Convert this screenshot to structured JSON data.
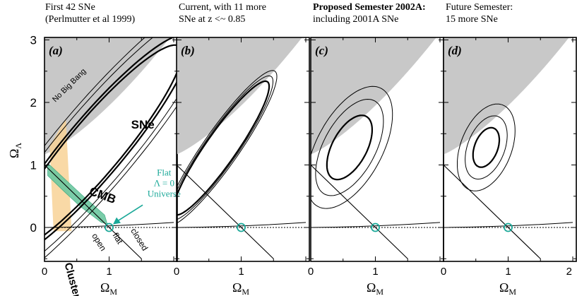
{
  "chart_data": {
    "type": "contour",
    "x_axis": {
      "label": "Ω",
      "label_sub": "M",
      "ticks": [
        "0",
        "1",
        "2"
      ],
      "range": [
        0,
        2
      ]
    },
    "y_axis": {
      "label": "Ω",
      "label_sub": "Λ",
      "ticks": [
        "0",
        "1",
        "2",
        "3"
      ],
      "range": [
        -0.5,
        3.0
      ]
    },
    "colors": {
      "no_big_bang": "#c8c8c8",
      "clusters": "#f8d296",
      "cmb": "#6cc8a0",
      "flat_marker": "#1aa898",
      "contour": "#000000"
    },
    "panels": [
      {
        "id": "a",
        "label": "(a)",
        "caption": [
          "First 42 SNe",
          "(Perlmutter et al 1999)"
        ],
        "caption_bold": false,
        "sne_ellipse": {
          "center": [
            0.78,
            1.28
          ],
          "angle_deg": 51,
          "sigma": [
            2.08,
            0.42
          ],
          "levels": [
            1.0,
            1.1,
            1.35,
            1.5
          ],
          "widths": [
            2.2,
            2.2,
            1.0,
            1.0
          ]
        },
        "annotations": {
          "no_big_bang": "No Big Bang",
          "sne": "SNe",
          "cmb": "CMB",
          "clusters": "Clusters",
          "flat_lambda": [
            "Flat",
            "Λ = 0",
            "Universe"
          ],
          "open": "open",
          "flat": "flat",
          "closed": "closed"
        }
      },
      {
        "id": "b",
        "label": "(b)",
        "caption": [
          "Current, with 11 more",
          "SNe at z <~ 0.85"
        ],
        "caption_bold": false,
        "sne_ellipse": {
          "center": [
            0.69,
            1.27
          ],
          "angle_deg": 56,
          "sigma": [
            1.28,
            0.24
          ],
          "levels": [
            1.0,
            1.08,
            1.16
          ],
          "widths": [
            2.2,
            1.0,
            1.0
          ]
        }
      },
      {
        "id": "c",
        "label": "(c)",
        "caption": [
          "Proposed Semester 2002A:",
          "including 2001A SNe"
        ],
        "caption_bold": true,
        "sne_ellipse": {
          "center": [
            0.6,
            1.28
          ],
          "angle_deg": 63,
          "sigma": [
            0.56,
            0.27
          ],
          "levels": [
            1.0,
            1.5,
            1.9
          ],
          "widths": [
            2.2,
            1.0,
            1.0
          ]
        }
      },
      {
        "id": "d",
        "label": "(d)",
        "caption": [
          "Future Semester:",
          "15 more SNe"
        ],
        "caption_bold": false,
        "sne_ellipse": {
          "center": [
            0.66,
            1.28
          ],
          "angle_deg": 70,
          "sigma": [
            0.33,
            0.18
          ],
          "levels": [
            1.0,
            1.6,
            2.2
          ],
          "widths": [
            2.2,
            1.0,
            1.0
          ]
        }
      }
    ],
    "flat_line": {
      "from": [
        0,
        1
      ],
      "to": [
        1.5,
        -0.5
      ]
    },
    "flat_point": [
      1,
      0
    ]
  }
}
